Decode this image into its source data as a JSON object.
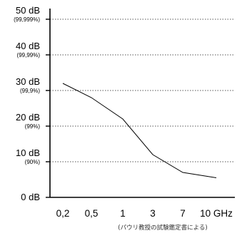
{
  "chart_data": {
    "type": "line",
    "title": "",
    "xlabel": "",
    "ylabel": "",
    "x_scale": "categorical",
    "categories": [
      "0,2",
      "0,5",
      "1",
      "3",
      "7",
      "10 GHz"
    ],
    "series": [
      {
        "values": [
          32,
          28,
          22,
          12,
          7,
          5.5
        ]
      }
    ],
    "ylim": [
      0,
      50
    ],
    "y_ticks": [
      {
        "value": 50,
        "label": "50 dB",
        "sub": "(99,999%)"
      },
      {
        "value": 40,
        "label": "40 dB",
        "sub": "(99,99%)"
      },
      {
        "value": 30,
        "label": "30 dB",
        "sub": "(99,9%)"
      },
      {
        "value": 20,
        "label": "20 dB",
        "sub": "(99%)"
      },
      {
        "value": 10,
        "label": "10 dB",
        "sub": "(90%)"
      },
      {
        "value": 0,
        "label": "0 dB",
        "sub": ""
      }
    ],
    "grid": "horizontal dotted",
    "legend": "none",
    "note": "(パウリ教授の試験鑑定書による)",
    "colors": {
      "line": "#000000",
      "grid": "#555555",
      "axis": "#000000"
    }
  }
}
